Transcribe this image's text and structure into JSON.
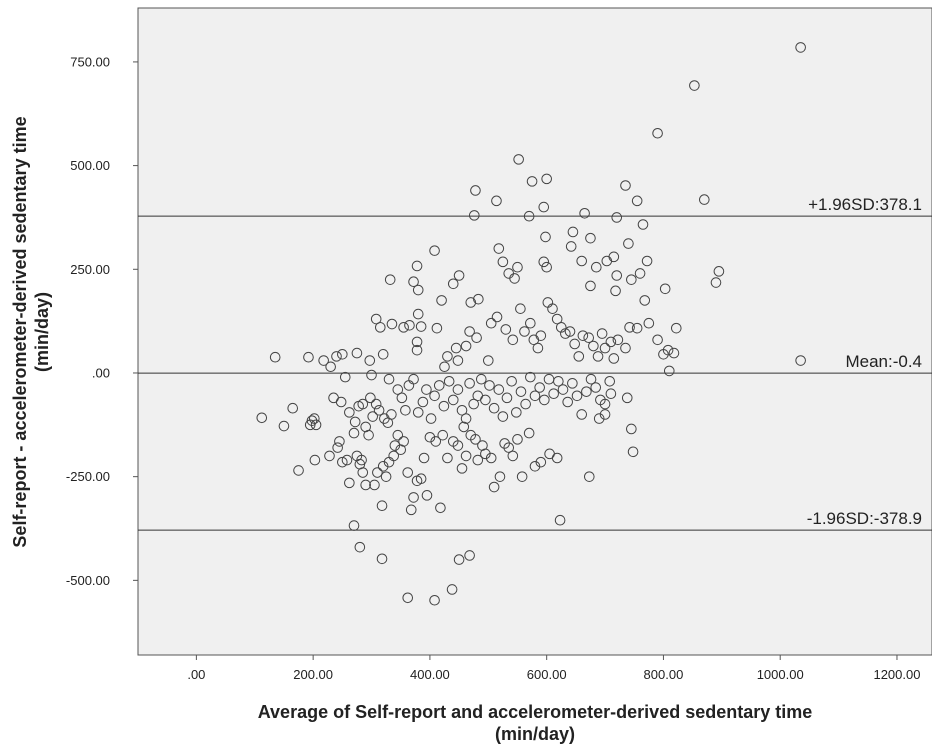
{
  "chart_data": {
    "type": "scatter",
    "xlabel_line1": "Average of Self-report and accelerometer-derived sedentary time",
    "xlabel_line2": "(min/day)",
    "ylabel_line1": "Self-report - accelerometer-derived sedentary time",
    "ylabel_line2": "(min/day)",
    "xlim": [
      -100,
      1260
    ],
    "ylim": [
      -680,
      880
    ],
    "x_ticks": [
      0,
      200,
      400,
      600,
      800,
      1000,
      1200
    ],
    "x_tick_labels": [
      ".00",
      "200.00",
      "400.00",
      "600.00",
      "800.00",
      "1000.00",
      "1200.00"
    ],
    "y_ticks": [
      -500,
      -250,
      0,
      250,
      500,
      750
    ],
    "y_tick_labels": [
      "-500.00",
      "-250.00",
      ".00",
      "250.00",
      "500.00",
      "750.00"
    ],
    "grid": false,
    "plot_background": "#f0f0f0",
    "reference_lines": [
      {
        "value": 378.1,
        "label": "+1.96SD:378.1"
      },
      {
        "value": -0.4,
        "label": "Mean:-0.4"
      },
      {
        "value": -378.9,
        "label": "-1.96SD:-378.9"
      }
    ],
    "points": [
      [
        1035,
        785
      ],
      [
        853,
        693
      ],
      [
        790,
        578
      ],
      [
        870,
        418
      ],
      [
        552,
        515
      ],
      [
        575,
        462
      ],
      [
        600,
        468
      ],
      [
        478,
        440
      ],
      [
        514,
        415
      ],
      [
        595,
        400
      ],
      [
        570,
        378
      ],
      [
        476,
        380
      ],
      [
        665,
        385
      ],
      [
        720,
        375
      ],
      [
        765,
        358
      ],
      [
        735,
        452
      ],
      [
        755,
        415
      ],
      [
        645,
        340
      ],
      [
        675,
        325
      ],
      [
        715,
        280
      ],
      [
        740,
        312
      ],
      [
        772,
        270
      ],
      [
        890,
        218
      ],
      [
        895,
        245
      ],
      [
        803,
        203
      ],
      [
        822,
        108
      ],
      [
        808,
        55
      ],
      [
        818,
        48
      ],
      [
        1035,
        30
      ],
      [
        408,
        295
      ],
      [
        420,
        175
      ],
      [
        440,
        215
      ],
      [
        450,
        235
      ],
      [
        470,
        170
      ],
      [
        483,
        178
      ],
      [
        518,
        300
      ],
      [
        525,
        268
      ],
      [
        535,
        240
      ],
      [
        545,
        228
      ],
      [
        550,
        255
      ],
      [
        595,
        268
      ],
      [
        600,
        255
      ],
      [
        598,
        328
      ],
      [
        642,
        305
      ],
      [
        660,
        270
      ],
      [
        685,
        255
      ],
      [
        703,
        270
      ],
      [
        720,
        235
      ],
      [
        718,
        198
      ],
      [
        745,
        225
      ],
      [
        760,
        240
      ],
      [
        675,
        210
      ],
      [
        332,
        225
      ],
      [
        372,
        220
      ],
      [
        378,
        258
      ],
      [
        380,
        200
      ],
      [
        308,
        130
      ],
      [
        315,
        110
      ],
      [
        335,
        118
      ],
      [
        355,
        110
      ],
      [
        365,
        115
      ],
      [
        385,
        112
      ],
      [
        412,
        108
      ],
      [
        378,
        75
      ],
      [
        378,
        55
      ],
      [
        380,
        142
      ],
      [
        430,
        40
      ],
      [
        425,
        15
      ],
      [
        445,
        60
      ],
      [
        448,
        30
      ],
      [
        462,
        65
      ],
      [
        468,
        100
      ],
      [
        480,
        85
      ],
      [
        500,
        30
      ],
      [
        505,
        120
      ],
      [
        515,
        135
      ],
      [
        530,
        105
      ],
      [
        542,
        80
      ],
      [
        555,
        155
      ],
      [
        562,
        100
      ],
      [
        572,
        120
      ],
      [
        578,
        80
      ],
      [
        585,
        60
      ],
      [
        590,
        90
      ],
      [
        602,
        170
      ],
      [
        610,
        155
      ],
      [
        618,
        130
      ],
      [
        625,
        110
      ],
      [
        632,
        95
      ],
      [
        640,
        100
      ],
      [
        648,
        70
      ],
      [
        655,
        40
      ],
      [
        662,
        90
      ],
      [
        672,
        85
      ],
      [
        680,
        65
      ],
      [
        688,
        40
      ],
      [
        695,
        95
      ],
      [
        700,
        60
      ],
      [
        710,
        75
      ],
      [
        715,
        35
      ],
      [
        722,
        80
      ],
      [
        735,
        60
      ],
      [
        742,
        110
      ],
      [
        755,
        108
      ],
      [
        768,
        175
      ],
      [
        775,
        120
      ],
      [
        790,
        80
      ],
      [
        800,
        45
      ],
      [
        810,
        5
      ],
      [
        135,
        38
      ],
      [
        192,
        38
      ],
      [
        218,
        30
      ],
      [
        240,
        40
      ],
      [
        250,
        45
      ],
      [
        275,
        48
      ],
      [
        297,
        30
      ],
      [
        320,
        45
      ],
      [
        230,
        15
      ],
      [
        255,
        -10
      ],
      [
        300,
        -5
      ],
      [
        330,
        -15
      ],
      [
        112,
        -108
      ],
      [
        150,
        -128
      ],
      [
        165,
        -85
      ],
      [
        195,
        -125
      ],
      [
        198,
        -115
      ],
      [
        202,
        -110
      ],
      [
        205,
        -125
      ],
      [
        175,
        -235
      ],
      [
        203,
        -210
      ],
      [
        228,
        -200
      ],
      [
        242,
        -180
      ],
      [
        245,
        -165
      ],
      [
        250,
        -215
      ],
      [
        258,
        -210
      ],
      [
        262,
        -265
      ],
      [
        270,
        -145
      ],
      [
        275,
        -200
      ],
      [
        280,
        -220
      ],
      [
        283,
        -210
      ],
      [
        285,
        -240
      ],
      [
        290,
        -270
      ],
      [
        295,
        -150
      ],
      [
        305,
        -270
      ],
      [
        310,
        -240
      ],
      [
        318,
        -320
      ],
      [
        320,
        -225
      ],
      [
        325,
        -250
      ],
      [
        330,
        -215
      ],
      [
        338,
        -200
      ],
      [
        340,
        -175
      ],
      [
        345,
        -150
      ],
      [
        350,
        -185
      ],
      [
        355,
        -165
      ],
      [
        362,
        -240
      ],
      [
        368,
        -330
      ],
      [
        372,
        -300
      ],
      [
        378,
        -260
      ],
      [
        385,
        -255
      ],
      [
        390,
        -205
      ],
      [
        395,
        -295
      ],
      [
        400,
        -155
      ],
      [
        410,
        -165
      ],
      [
        418,
        -325
      ],
      [
        422,
        -150
      ],
      [
        430,
        -205
      ],
      [
        440,
        -165
      ],
      [
        448,
        -175
      ],
      [
        455,
        -230
      ],
      [
        458,
        -130
      ],
      [
        462,
        -200
      ],
      [
        470,
        -150
      ],
      [
        478,
        -160
      ],
      [
        482,
        -210
      ],
      [
        490,
        -175
      ],
      [
        495,
        -195
      ],
      [
        505,
        -205
      ],
      [
        510,
        -275
      ],
      [
        520,
        -250
      ],
      [
        528,
        -170
      ],
      [
        535,
        -180
      ],
      [
        542,
        -200
      ],
      [
        550,
        -160
      ],
      [
        558,
        -250
      ],
      [
        570,
        -145
      ],
      [
        580,
        -225
      ],
      [
        590,
        -215
      ],
      [
        605,
        -195
      ],
      [
        618,
        -205
      ],
      [
        623,
        -355
      ],
      [
        673,
        -250
      ],
      [
        748,
        -190
      ],
      [
        745,
        -135
      ],
      [
        738,
        -60
      ],
      [
        690,
        -110
      ],
      [
        700,
        -75
      ],
      [
        710,
        -50
      ],
      [
        235,
        -60
      ],
      [
        248,
        -70
      ],
      [
        262,
        -95
      ],
      [
        272,
        -118
      ],
      [
        278,
        -80
      ],
      [
        285,
        -75
      ],
      [
        290,
        -130
      ],
      [
        298,
        -60
      ],
      [
        302,
        -105
      ],
      [
        308,
        -75
      ],
      [
        313,
        -90
      ],
      [
        322,
        -110
      ],
      [
        328,
        -120
      ],
      [
        334,
        -100
      ],
      [
        345,
        -40
      ],
      [
        352,
        -60
      ],
      [
        358,
        -90
      ],
      [
        364,
        -30
      ],
      [
        372,
        -15
      ],
      [
        380,
        -95
      ],
      [
        388,
        -70
      ],
      [
        394,
        -40
      ],
      [
        402,
        -110
      ],
      [
        408,
        -55
      ],
      [
        416,
        -30
      ],
      [
        424,
        -80
      ],
      [
        433,
        -20
      ],
      [
        440,
        -65
      ],
      [
        448,
        -40
      ],
      [
        455,
        -90
      ],
      [
        462,
        -110
      ],
      [
        468,
        -25
      ],
      [
        475,
        -75
      ],
      [
        482,
        -55
      ],
      [
        488,
        -15
      ],
      [
        495,
        -65
      ],
      [
        502,
        -30
      ],
      [
        510,
        -85
      ],
      [
        518,
        -40
      ],
      [
        525,
        -105
      ],
      [
        532,
        -60
      ],
      [
        540,
        -20
      ],
      [
        548,
        -95
      ],
      [
        556,
        -45
      ],
      [
        564,
        -75
      ],
      [
        572,
        -10
      ],
      [
        580,
        -55
      ],
      [
        588,
        -35
      ],
      [
        596,
        -65
      ],
      [
        604,
        -15
      ],
      [
        612,
        -50
      ],
      [
        620,
        -20
      ],
      [
        628,
        -40
      ],
      [
        636,
        -70
      ],
      [
        644,
        -25
      ],
      [
        652,
        -55
      ],
      [
        660,
        -100
      ],
      [
        668,
        -45
      ],
      [
        676,
        -15
      ],
      [
        684,
        -35
      ],
      [
        692,
        -65
      ],
      [
        700,
        -100
      ],
      [
        708,
        -20
      ],
      [
        270,
        -368
      ],
      [
        280,
        -420
      ],
      [
        318,
        -448
      ],
      [
        362,
        -542
      ],
      [
        408,
        -548
      ],
      [
        438,
        -522
      ],
      [
        450,
        -450
      ],
      [
        468,
        -440
      ]
    ]
  }
}
